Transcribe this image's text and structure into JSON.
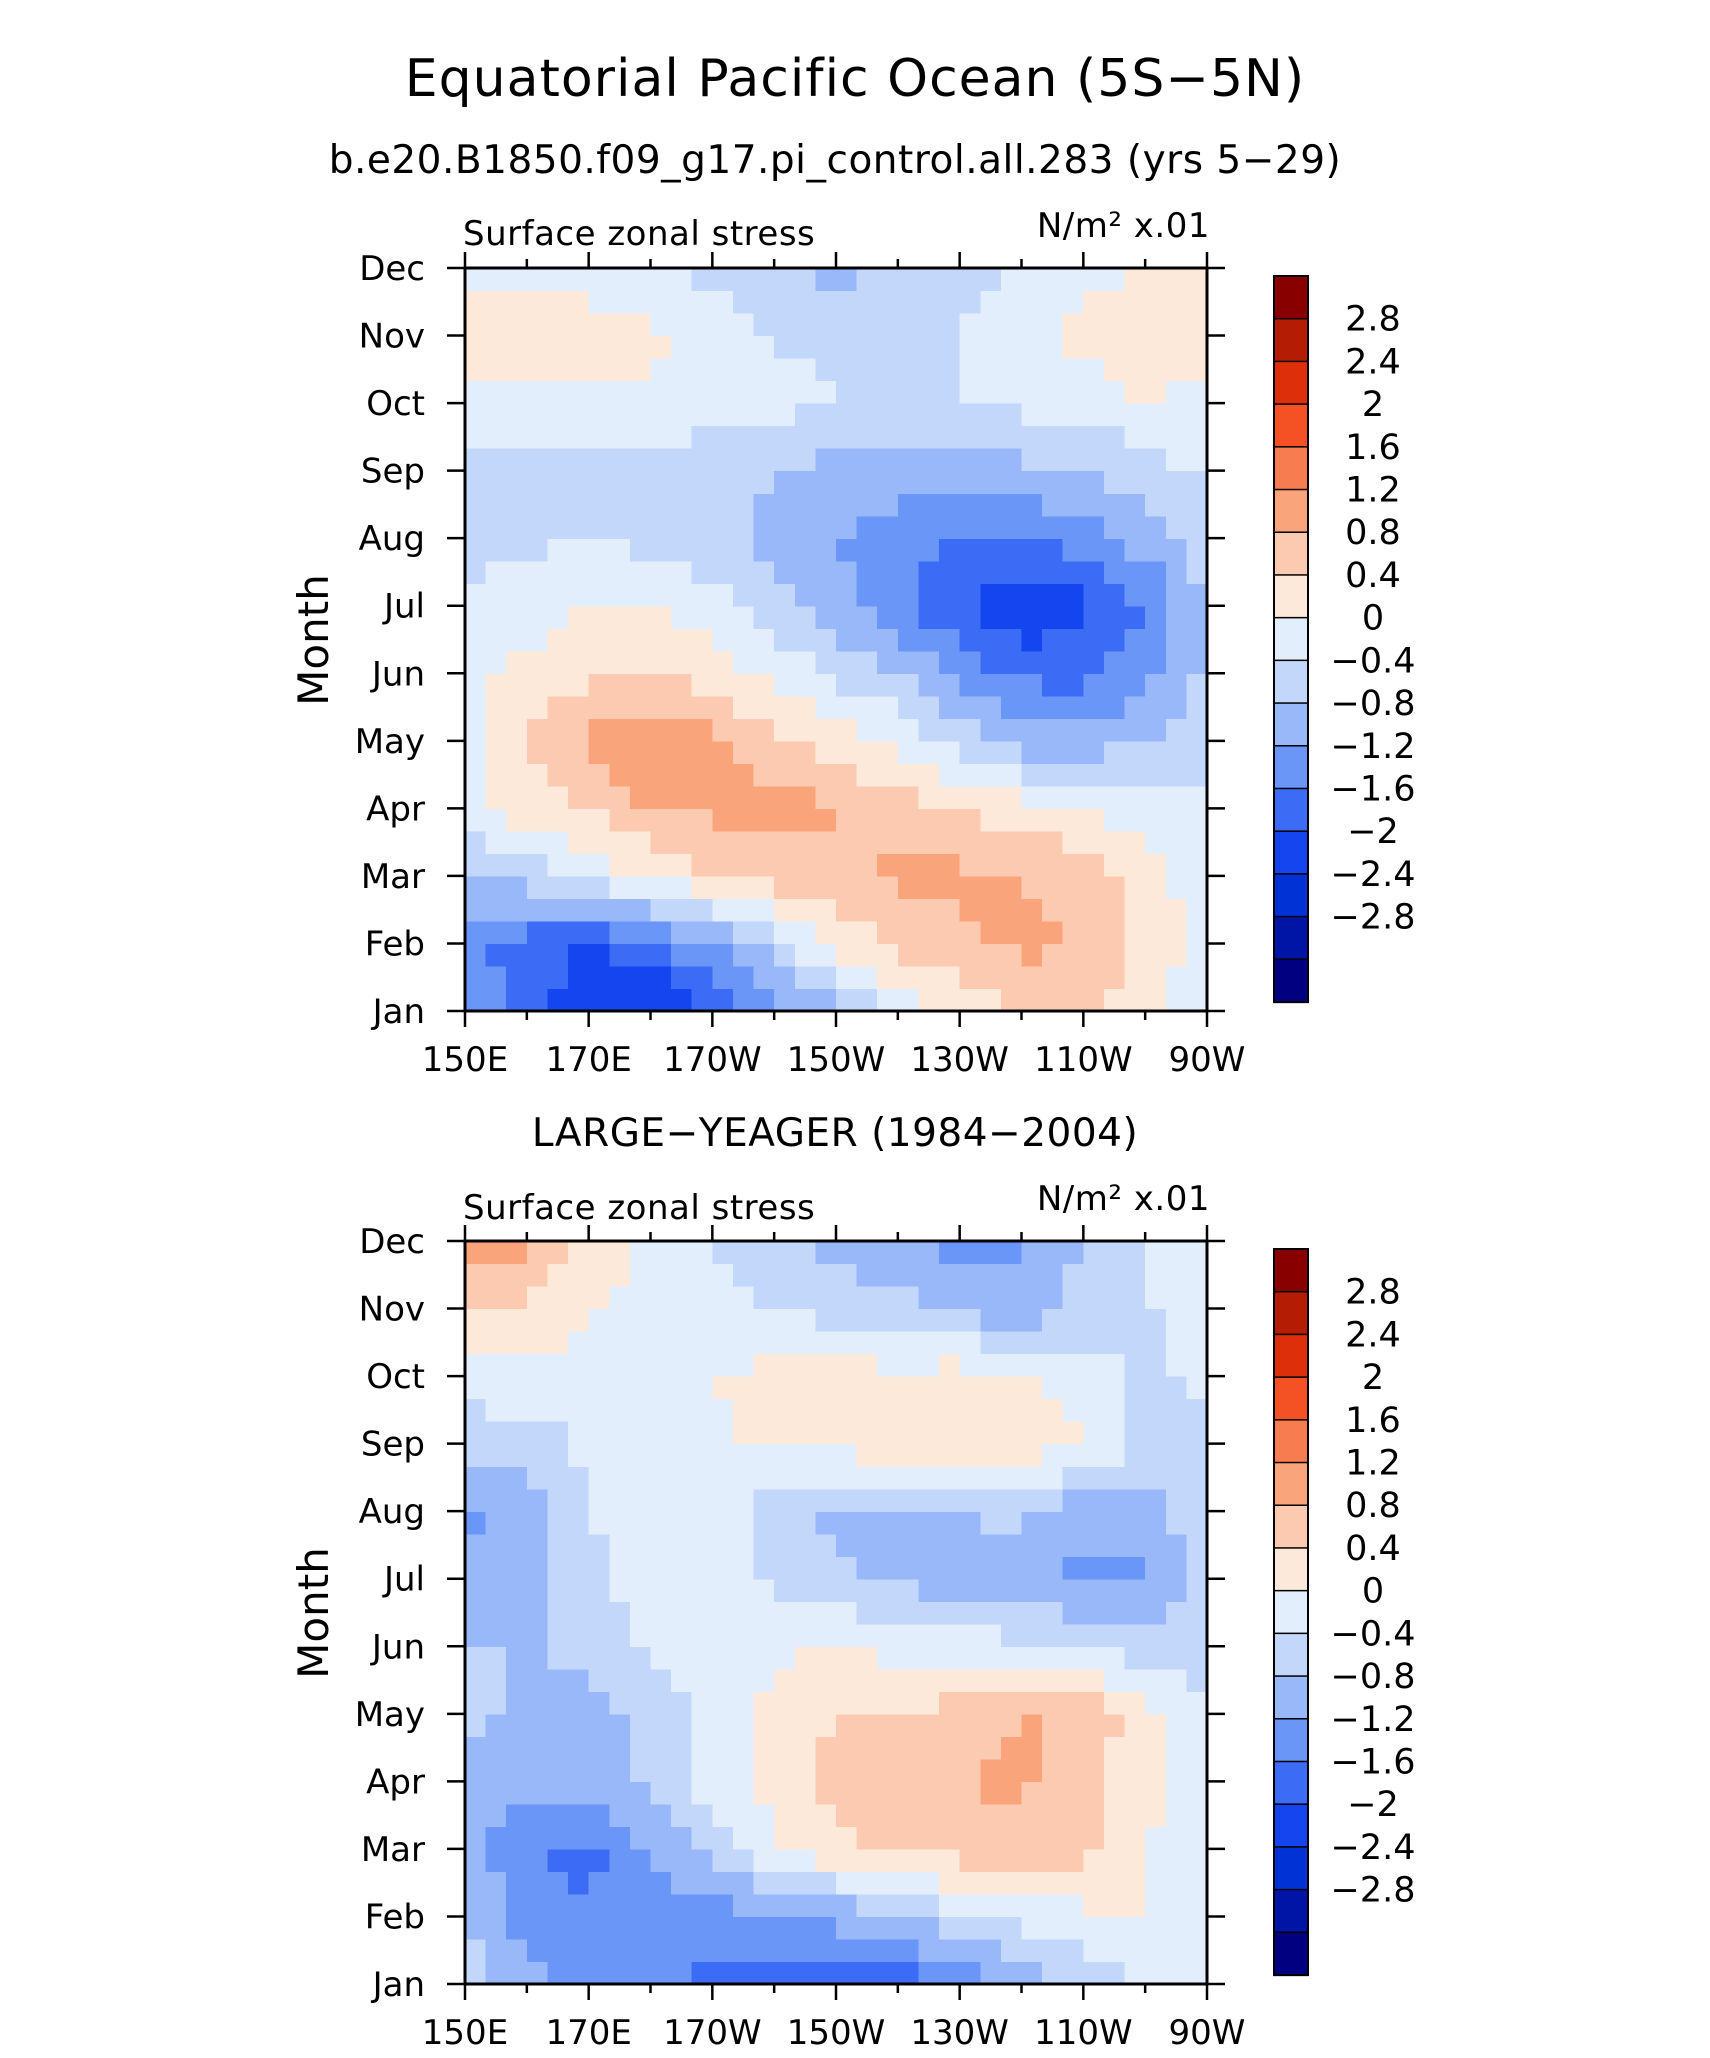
{
  "figure": {
    "title": "Equatorial Pacific Ocean (5S−5N)",
    "subtitle": "b.e20.B1850.f09_g17.pi_control.all.283 (yrs 5−29)"
  },
  "colors": {
    "levels": [
      -3.2,
      -2.8,
      -2.4,
      -2.0,
      -1.6,
      -1.2,
      -0.8,
      -0.4,
      0,
      0.4,
      0.8,
      1.2,
      1.6,
      2.0,
      2.4,
      2.8,
      3.2
    ],
    "fills": [
      "#000080",
      "#0015a5",
      "#0032d6",
      "#1545ee",
      "#3c6cf5",
      "#6a96f8",
      "#98b8fa",
      "#c3d7fb",
      "#e3eefd",
      "#fde9d9",
      "#fccab0",
      "#faa47c",
      "#f77c4f",
      "#f45225",
      "#dd300a",
      "#b41d04",
      "#880000"
    ]
  },
  "chart_data": [
    {
      "type": "heatmap",
      "title": "",
      "left_label": "Surface zonal stress",
      "units_label": "N/m² x.01",
      "ylabel": "Month",
      "xlabel": "",
      "x_ticklabels": [
        "150E",
        "170E",
        "170W",
        "150W",
        "130W",
        "110W",
        "90W"
      ],
      "x": [
        150,
        160,
        170,
        180,
        190,
        200,
        210,
        220,
        230,
        240,
        250,
        260,
        270
      ],
      "y_ticklabels": [
        "Jan",
        "Feb",
        "Mar",
        "Apr",
        "May",
        "Jun",
        "Jul",
        "Aug",
        "Sep",
        "Oct",
        "Nov",
        "Dec"
      ],
      "colorbar_labels": [
        "2.8",
        "2.4",
        "2",
        "1.6",
        "1.2",
        "0.8",
        "0.4",
        "0",
        "−0.4",
        "−0.8",
        "−1.2",
        "−1.6",
        "−2",
        "−2.4",
        "−2.8"
      ],
      "values": [
        [
          -1.0,
          -1.4,
          -1.9,
          -2.1,
          -1.6,
          -1.0,
          -0.5,
          0.2,
          0.6,
          0.8,
          0.8,
          0.5,
          0.1
        ],
        [
          -1.0,
          -1.4,
          -1.6,
          -1.3,
          -0.8,
          -0.2,
          0.5,
          0.9,
          1.1,
          1.3,
          1.2,
          0.7,
          0.2
        ],
        [
          -0.4,
          -0.2,
          0.1,
          0.5,
          0.8,
          1.0,
          1.1,
          1.3,
          1.3,
          1.2,
          1.0,
          0.6,
          0.1
        ],
        [
          0.3,
          0.6,
          0.8,
          1.2,
          1.3,
          1.4,
          1.2,
          1.0,
          0.8,
          0.6,
          0.4,
          0.2,
          0.0
        ],
        [
          0.3,
          0.8,
          1.3,
          1.6,
          1.3,
          0.9,
          0.6,
          0.3,
          -0.2,
          -0.6,
          -0.6,
          -0.4,
          -0.1
        ],
        [
          0.3,
          0.5,
          0.7,
          0.8,
          0.6,
          0.3,
          -0.1,
          -0.4,
          -0.9,
          -1.3,
          -1.4,
          -0.9,
          -0.3
        ],
        [
          0.1,
          0.2,
          0.4,
          0.4,
          0.2,
          -0.2,
          -0.6,
          -1.1,
          -1.6,
          -2.0,
          -1.7,
          -1.2,
          -0.4
        ],
        [
          -0.2,
          -0.1,
          0.0,
          -0.1,
          -0.3,
          -0.5,
          -0.8,
          -1.0,
          -1.2,
          -1.2,
          -1.0,
          -0.6,
          -0.2
        ],
        [
          -0.1,
          -0.2,
          -0.2,
          -0.2,
          -0.3,
          -0.4,
          -0.5,
          -0.6,
          -0.6,
          -0.5,
          -0.4,
          -0.2,
          0.1
        ],
        [
          0.2,
          0.2,
          0.3,
          0.3,
          0.2,
          0.1,
          0.0,
          0.0,
          0.0,
          0.1,
          0.2,
          0.4,
          0.3
        ],
        [
          0.8,
          0.9,
          0.6,
          0.5,
          0.2,
          0.0,
          -0.1,
          -0.1,
          0.0,
          0.2,
          0.5,
          0.6,
          0.5
        ],
        [
          0.3,
          0.3,
          0.2,
          0.1,
          -0.1,
          -0.3,
          -0.5,
          -0.4,
          -0.2,
          0.0,
          0.3,
          0.4,
          0.4
        ]
      ]
    },
    {
      "type": "heatmap",
      "title": "LARGE−YEAGER (1984−2004)",
      "left_label": "Surface zonal stress",
      "units_label": "N/m² x.01",
      "ylabel": "Month",
      "xlabel": "",
      "x_ticklabels": [
        "150E",
        "170E",
        "170W",
        "150W",
        "130W",
        "110W",
        "90W"
      ],
      "x": [
        150,
        160,
        170,
        180,
        190,
        200,
        210,
        220,
        230,
        240,
        250,
        260,
        270
      ],
      "y_ticklabels": [
        "Jan",
        "Feb",
        "Mar",
        "Apr",
        "May",
        "Jun",
        "Jul",
        "Aug",
        "Sep",
        "Oct",
        "Nov",
        "Dec"
      ],
      "colorbar_labels": [
        "2.8",
        "2.4",
        "2",
        "1.6",
        "1.2",
        "0.8",
        "0.4",
        "0",
        "−0.4",
        "−0.8",
        "−1.2",
        "−1.6",
        "−2",
        "−2.4",
        "−2.8"
      ],
      "values": [
        [
          -0.2,
          -0.7,
          -0.9,
          -1.0,
          -1.3,
          -1.5,
          -1.3,
          -1.5,
          -1.2,
          -0.7,
          -0.3,
          0.1,
          0.2
        ],
        [
          -0.4,
          -1.0,
          -1.2,
          -1.0,
          -1.0,
          -0.9,
          -0.7,
          -0.4,
          -0.1,
          0.2,
          0.3,
          0.4,
          0.3
        ],
        [
          -0.6,
          -1.2,
          -1.3,
          -0.8,
          -0.2,
          0.3,
          0.7,
          0.9,
          1.0,
          1.0,
          0.9,
          0.4,
          0.2
        ],
        [
          -0.6,
          -0.7,
          -0.7,
          -0.3,
          0.2,
          0.6,
          0.9,
          1.0,
          1.2,
          1.3,
          0.9,
          0.5,
          0.2
        ],
        [
          -0.2,
          -0.6,
          -0.5,
          -0.3,
          0.1,
          0.5,
          0.8,
          0.8,
          1.0,
          1.2,
          1.2,
          0.6,
          0.0
        ],
        [
          -0.4,
          -0.4,
          -0.3,
          0.1,
          0.2,
          0.3,
          0.4,
          0.3,
          0.2,
          0.1,
          0.0,
          -0.2,
          -0.2
        ],
        [
          -0.7,
          -0.6,
          -0.1,
          0.2,
          0.3,
          -0.1,
          -0.3,
          -0.5,
          -0.6,
          -0.6,
          -0.9,
          -0.9,
          -0.3
        ],
        [
          -0.9,
          -0.6,
          0.0,
          0.3,
          0.3,
          -0.2,
          -0.5,
          -0.6,
          -0.4,
          -0.3,
          -0.7,
          -0.6,
          -0.1
        ],
        [
          -0.3,
          -0.2,
          0.1,
          0.2,
          0.3,
          0.5,
          0.5,
          0.7,
          0.8,
          0.7,
          0.4,
          -0.1,
          -0.2
        ],
        [
          0.2,
          0.3,
          0.2,
          0.2,
          0.4,
          0.5,
          0.6,
          0.5,
          0.6,
          0.5,
          0.2,
          -0.1,
          0.1
        ],
        [
          0.9,
          0.7,
          0.4,
          0.2,
          0.1,
          0.0,
          -0.2,
          -0.3,
          -0.5,
          -0.7,
          -0.2,
          0.0,
          0.0
        ],
        [
          1.5,
          1.3,
          0.7,
          0.3,
          0.0,
          -0.2,
          -0.5,
          -0.7,
          -0.9,
          -0.9,
          -0.4,
          0.0,
          0.1
        ]
      ]
    }
  ]
}
